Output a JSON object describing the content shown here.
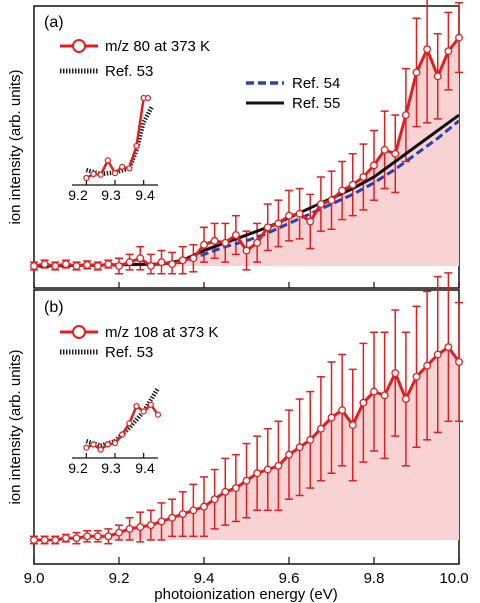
{
  "chart_data": [
    {
      "panel_label": "(a)",
      "type": "line",
      "xlabel": "photoionization energy (eV)",
      "ylabel": "ion intensity (arb. units)",
      "xlim": [
        9.0,
        10.0
      ],
      "xticks": [
        "9.0",
        "9.2",
        "9.4",
        "9.6",
        "9.8",
        "10.0"
      ],
      "legend_position": "top-left",
      "series": [
        {
          "name": "m/z 80 at 373 K",
          "style": "red line with open circle markers and error bars, shaded fill",
          "x": [
            9.0,
            9.025,
            9.05,
            9.075,
            9.1,
            9.125,
            9.15,
            9.175,
            9.2,
            9.225,
            9.25,
            9.275,
            9.3,
            9.325,
            9.35,
            9.375,
            9.4,
            9.425,
            9.45,
            9.475,
            9.5,
            9.525,
            9.55,
            9.575,
            9.6,
            9.625,
            9.65,
            9.675,
            9.7,
            9.725,
            9.75,
            9.775,
            9.8,
            9.825,
            9.85,
            9.875,
            9.9,
            9.925,
            9.95,
            9.975,
            10.0
          ],
          "y": [
            0.0,
            0.005,
            0.0,
            0.005,
            0.0,
            0.003,
            0.0,
            0.005,
            0.0,
            0.01,
            0.02,
            0.0,
            0.01,
            0.005,
            0.015,
            0.02,
            0.055,
            0.065,
            0.06,
            0.08,
            0.04,
            0.06,
            0.1,
            0.11,
            0.13,
            0.135,
            0.115,
            0.16,
            0.17,
            0.195,
            0.21,
            0.23,
            0.26,
            0.3,
            0.29,
            0.39,
            0.5,
            0.56,
            0.49,
            0.555,
            0.59
          ],
          "err": [
            0.01,
            0.01,
            0.01,
            0.01,
            0.01,
            0.01,
            0.01,
            0.01,
            0.02,
            0.02,
            0.03,
            0.03,
            0.03,
            0.03,
            0.035,
            0.035,
            0.045,
            0.045,
            0.05,
            0.05,
            0.05,
            0.05,
            0.06,
            0.06,
            0.065,
            0.065,
            0.07,
            0.07,
            0.075,
            0.075,
            0.08,
            0.085,
            0.09,
            0.1,
            0.1,
            0.12,
            0.14,
            0.19,
            0.11,
            0.1,
            0.09
          ]
        },
        {
          "name": "Ref. 53",
          "style": "black/gray dotted",
          "x": [],
          "y": []
        },
        {
          "name": "Ref. 54",
          "style": "blue dashed",
          "x": [
            9.0,
            9.3,
            9.35,
            9.4,
            9.45,
            9.5,
            9.55,
            9.6,
            9.65,
            9.7,
            9.75,
            9.8,
            9.85,
            9.9,
            9.95,
            10.0
          ],
          "y": [
            0.0,
            0.005,
            0.01,
            0.03,
            0.05,
            0.065,
            0.085,
            0.11,
            0.135,
            0.16,
            0.185,
            0.215,
            0.25,
            0.29,
            0.33,
            0.375
          ]
        },
        {
          "name": "Ref. 55",
          "style": "black solid",
          "x": [
            9.0,
            9.3,
            9.35,
            9.4,
            9.45,
            9.5,
            9.55,
            9.6,
            9.65,
            9.7,
            9.75,
            9.8,
            9.85,
            9.9,
            9.95,
            10.0
          ],
          "y": [
            0.0,
            0.005,
            0.015,
            0.04,
            0.06,
            0.08,
            0.1,
            0.125,
            0.15,
            0.175,
            0.2,
            0.23,
            0.27,
            0.31,
            0.35,
            0.39
          ]
        }
      ],
      "inset": {
        "xlim": [
          9.15,
          9.45
        ],
        "xticks": [
          "9.2",
          "9.3",
          "9.4"
        ],
        "measured": {
          "x": [
            9.2,
            9.225,
            9.25,
            9.275,
            9.3,
            9.325,
            9.35,
            9.375,
            9.4,
            9.415
          ],
          "y": [
            0.0,
            0.05,
            0.04,
            0.22,
            0.06,
            0.14,
            0.12,
            0.4,
            1.0,
            1.0
          ]
        },
        "ref": {
          "x": [
            9.2,
            9.25,
            9.3,
            9.35,
            9.375,
            9.4,
            9.43
          ],
          "y": [
            0.1,
            0.05,
            0.07,
            0.12,
            0.35,
            0.7,
            0.9
          ]
        }
      }
    },
    {
      "panel_label": "(b)",
      "type": "line",
      "xlabel": "photoionization energy (eV)",
      "ylabel": "ion intensity (arb. units)",
      "xlim": [
        9.0,
        10.0
      ],
      "xticks": [
        "9.0",
        "9.2",
        "9.4",
        "9.6",
        "9.8",
        "10.0"
      ],
      "legend_position": "top-left",
      "series": [
        {
          "name": "m/z 108 at 373 K",
          "style": "red line with open circle markers and error bars, shaded fill",
          "x": [
            9.0,
            9.025,
            9.05,
            9.075,
            9.1,
            9.125,
            9.15,
            9.175,
            9.2,
            9.225,
            9.25,
            9.275,
            9.3,
            9.325,
            9.35,
            9.375,
            9.4,
            9.425,
            9.45,
            9.475,
            9.5,
            9.525,
            9.55,
            9.575,
            9.6,
            9.625,
            9.65,
            9.675,
            9.7,
            9.725,
            9.75,
            9.775,
            9.8,
            9.825,
            9.85,
            9.875,
            9.9,
            9.925,
            9.95,
            9.975,
            10.0
          ],
          "y": [
            0.0,
            0.0,
            0.0,
            0.005,
            0.005,
            0.01,
            0.01,
            0.01,
            0.02,
            0.03,
            0.035,
            0.04,
            0.05,
            0.06,
            0.07,
            0.08,
            0.09,
            0.11,
            0.13,
            0.14,
            0.16,
            0.18,
            0.19,
            0.2,
            0.23,
            0.25,
            0.27,
            0.3,
            0.33,
            0.35,
            0.31,
            0.37,
            0.4,
            0.39,
            0.45,
            0.38,
            0.44,
            0.47,
            0.5,
            0.52,
            0.48
          ],
          "err": [
            0.01,
            0.01,
            0.01,
            0.01,
            0.015,
            0.015,
            0.015,
            0.02,
            0.02,
            0.03,
            0.04,
            0.04,
            0.05,
            0.05,
            0.06,
            0.07,
            0.08,
            0.08,
            0.09,
            0.09,
            0.1,
            0.1,
            0.11,
            0.12,
            0.12,
            0.13,
            0.13,
            0.14,
            0.15,
            0.15,
            0.15,
            0.16,
            0.16,
            0.17,
            0.17,
            0.18,
            0.19,
            0.2,
            0.21,
            0.2,
            0.16
          ]
        },
        {
          "name": "Ref. 53",
          "style": "black/gray dotted",
          "x": [],
          "y": []
        }
      ],
      "inset": {
        "xlim": [
          9.15,
          9.45
        ],
        "xticks": [
          "9.2",
          "9.3",
          "9.4"
        ],
        "measured": {
          "x": [
            9.2,
            9.225,
            9.25,
            9.275,
            9.3,
            9.325,
            9.35,
            9.375,
            9.4,
            9.425,
            9.45
          ],
          "y": [
            0.05,
            0.1,
            0.02,
            0.1,
            0.12,
            0.25,
            0.42,
            0.68,
            0.6,
            0.7,
            0.55
          ]
        },
        "ref": {
          "x": [
            9.2,
            9.25,
            9.3,
            9.35,
            9.4,
            9.45
          ],
          "y": [
            0.15,
            0.08,
            0.15,
            0.35,
            0.6,
            0.95
          ]
        }
      }
    }
  ]
}
